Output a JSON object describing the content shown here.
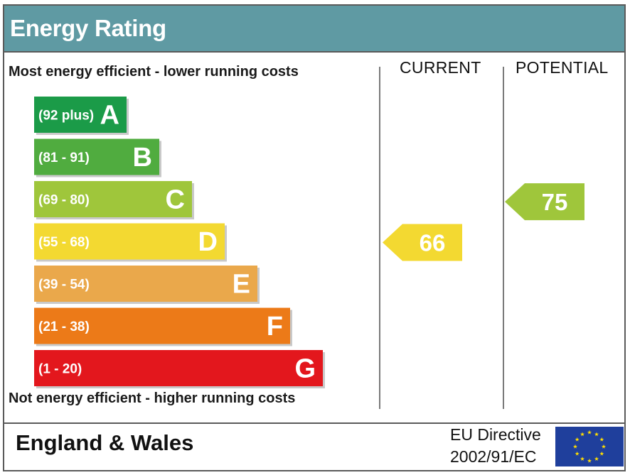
{
  "header": {
    "title": "Energy Rating"
  },
  "captions": {
    "top": "Most energy efficient - lower running costs",
    "bottom": "Not energy efficient - higher running costs"
  },
  "columns": {
    "current": "CURRENT",
    "potential": "POTENTIAL"
  },
  "footer": {
    "region": "England & Wales",
    "directive_line1": "EU Directive",
    "directive_line2": "2002/91/EC"
  },
  "chart_data": {
    "type": "bar",
    "title": "Energy Rating",
    "bands": [
      {
        "letter": "A",
        "range": "(92 plus)",
        "min": 92,
        "max": 100,
        "color": "#1b9b48"
      },
      {
        "letter": "B",
        "range": "(81 - 91)",
        "min": 81,
        "max": 91,
        "color": "#50ac3f"
      },
      {
        "letter": "C",
        "range": "(69 - 80)",
        "min": 69,
        "max": 80,
        "color": "#9fc63b"
      },
      {
        "letter": "D",
        "range": "(55 - 68)",
        "min": 55,
        "max": 68,
        "color": "#f3d931"
      },
      {
        "letter": "E",
        "range": "(39 - 54)",
        "min": 39,
        "max": 54,
        "color": "#eaa84b"
      },
      {
        "letter": "F",
        "range": "(21 - 38)",
        "min": 21,
        "max": 38,
        "color": "#ec7a18"
      },
      {
        "letter": "G",
        "range": "(1 - 20)",
        "min": 1,
        "max": 20,
        "color": "#e3171d"
      }
    ],
    "ratings": [
      {
        "column": "current",
        "value": 66,
        "band": "D"
      },
      {
        "column": "potential",
        "value": 75,
        "band": "C"
      }
    ]
  }
}
